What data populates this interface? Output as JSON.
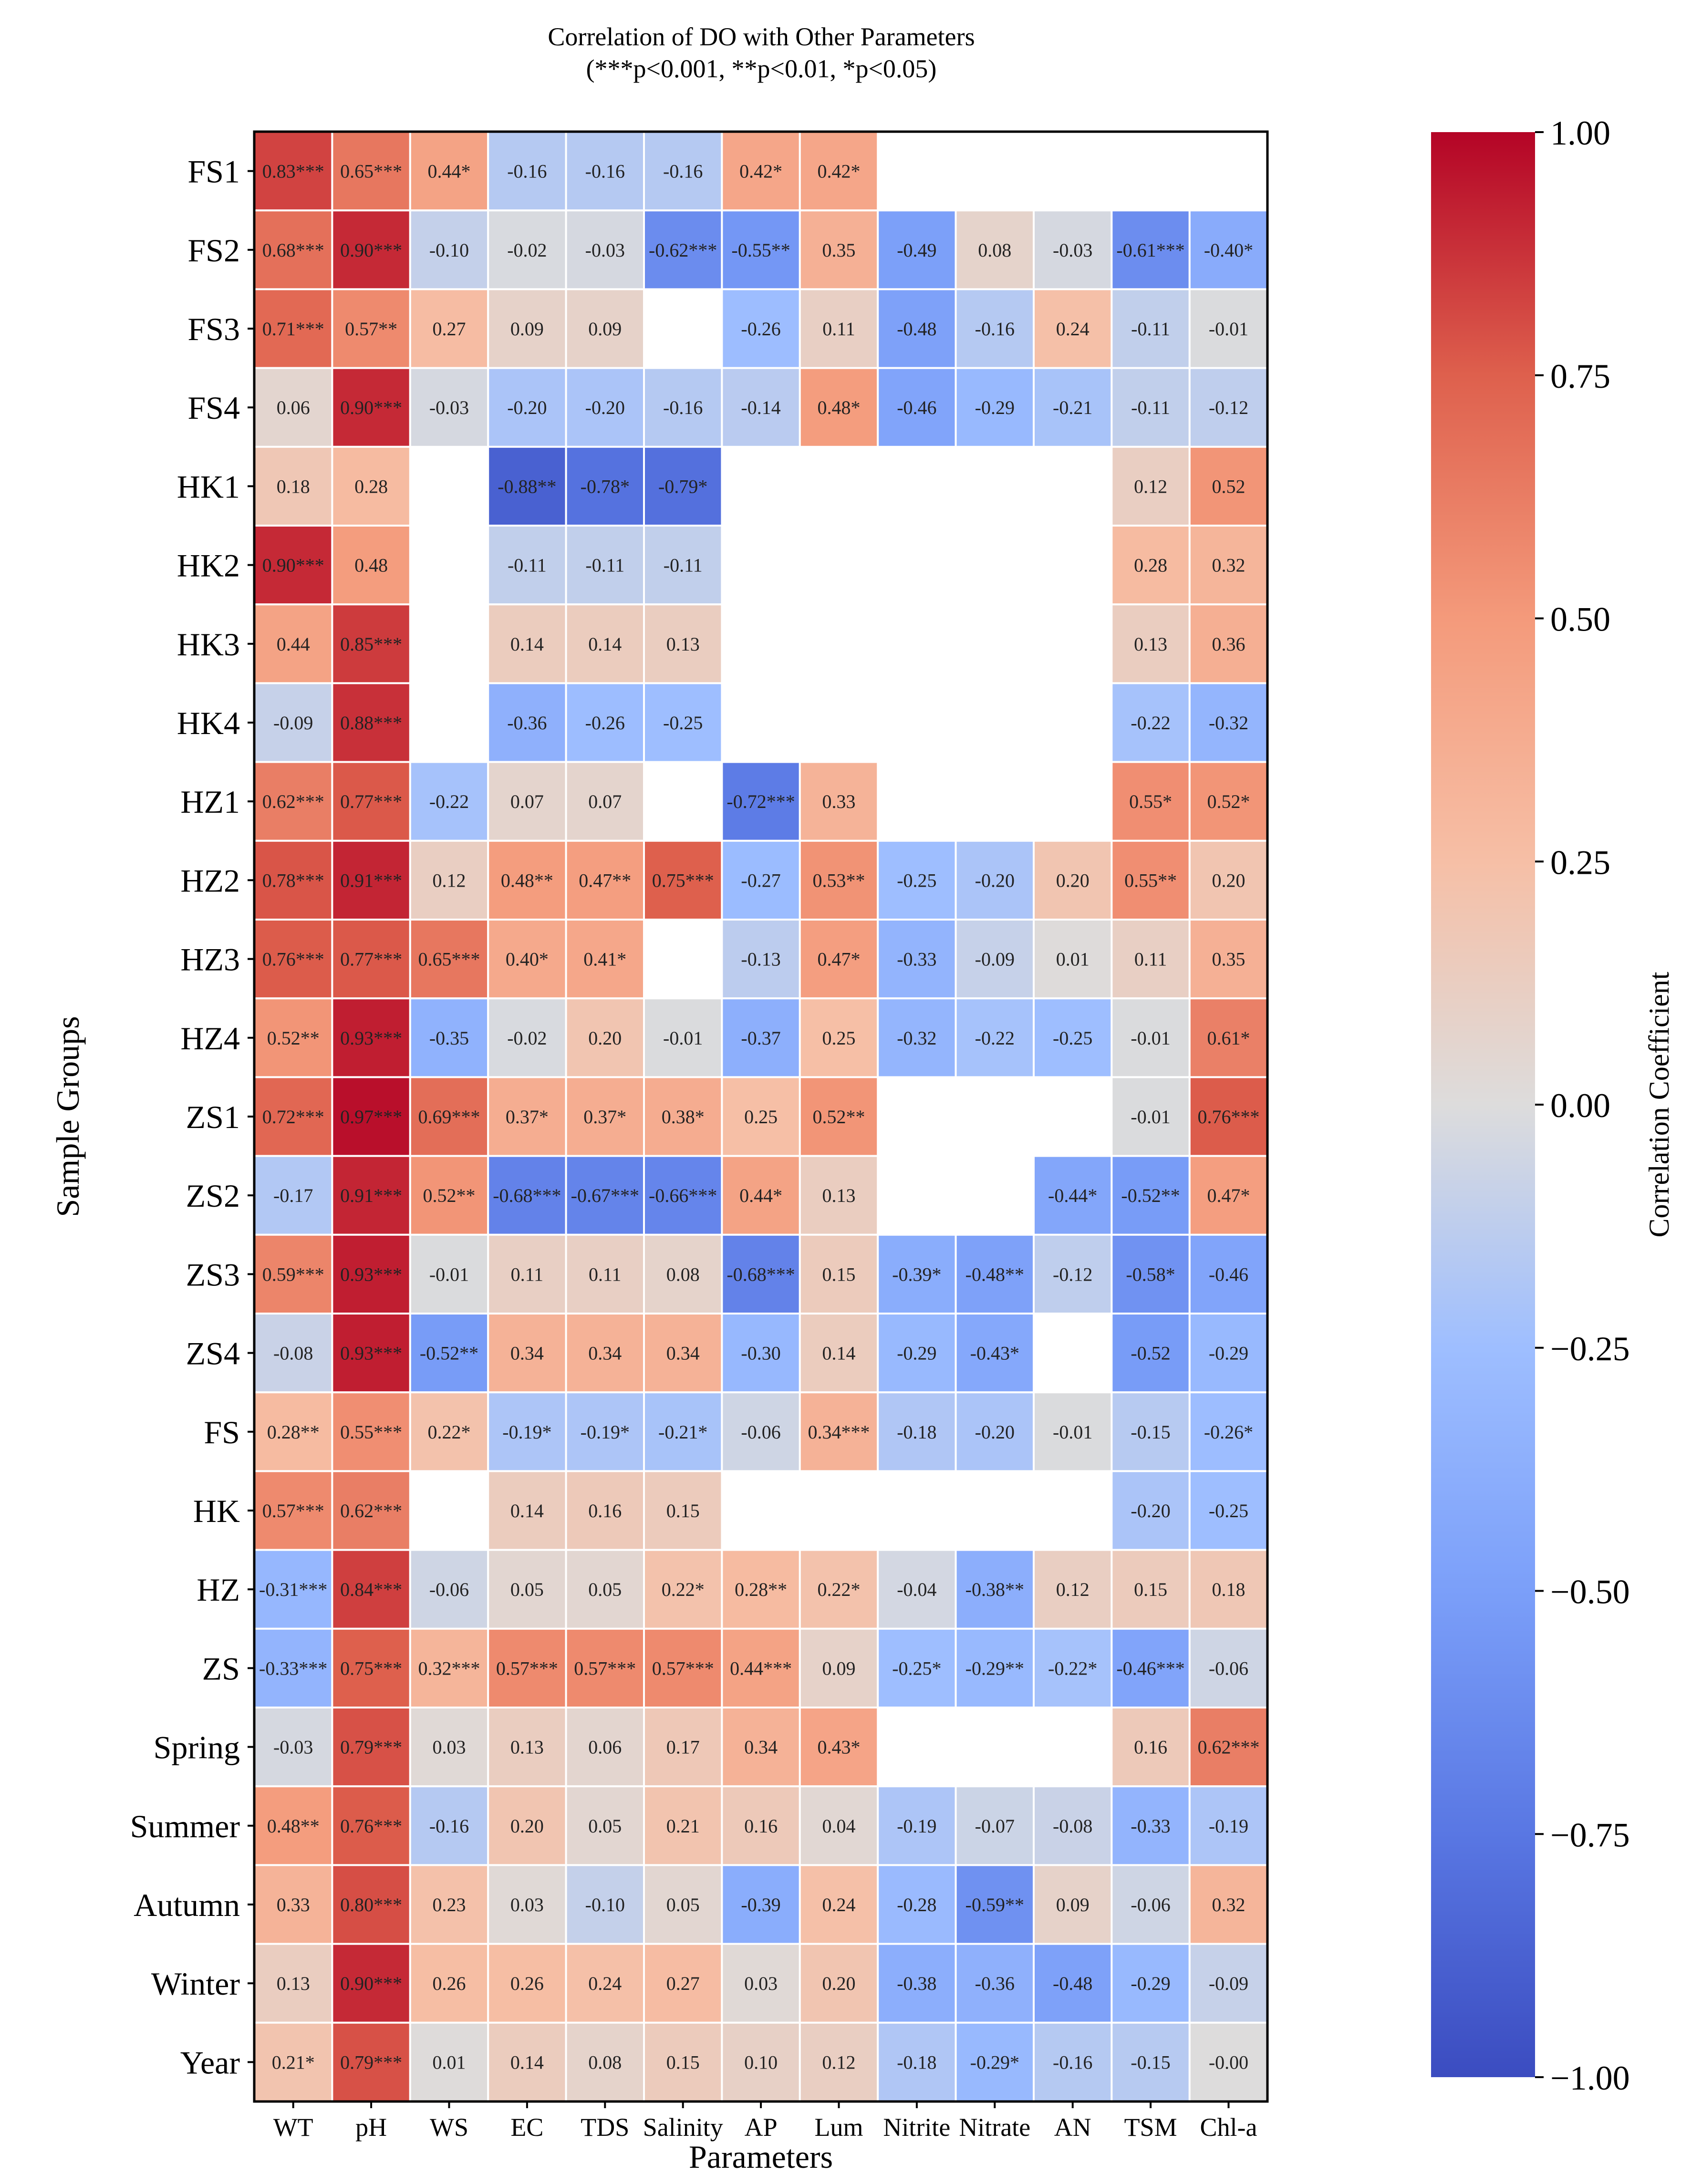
{
  "chart_data": {
    "type": "heatmap",
    "title": "Correlation of DO with Other Parameters",
    "subtitle": "(***p<0.001, **p<0.01, *p<0.05)",
    "xlabel": "Parameters",
    "ylabel": "Sample Groups",
    "columns": [
      "WT",
      "pH",
      "WS",
      "EC",
      "TDS",
      "Salinity",
      "AP",
      "Lum",
      "Nitrite",
      "Nitrate",
      "AN",
      "TSM",
      "Chl-a"
    ],
    "rows": [
      "FS1",
      "FS2",
      "FS3",
      "FS4",
      "HK1",
      "HK2",
      "HK3",
      "HK4",
      "HZ1",
      "HZ2",
      "HZ3",
      "HZ4",
      "ZS1",
      "ZS2",
      "ZS3",
      "ZS4",
      "FS",
      "HK",
      "HZ",
      "ZS",
      "Spring",
      "Summer",
      "Autumn",
      "Winter",
      "Year"
    ],
    "values": [
      [
        0.83,
        0.65,
        0.44,
        -0.16,
        -0.16,
        -0.16,
        0.42,
        0.42,
        null,
        null,
        null,
        null,
        null
      ],
      [
        0.68,
        0.9,
        -0.1,
        -0.02,
        -0.03,
        -0.62,
        -0.55,
        0.35,
        -0.49,
        0.08,
        -0.03,
        -0.61,
        -0.4
      ],
      [
        0.71,
        0.57,
        0.27,
        0.09,
        0.09,
        null,
        -0.26,
        0.11,
        -0.48,
        -0.16,
        0.24,
        -0.11,
        -0.01
      ],
      [
        0.06,
        0.9,
        -0.03,
        -0.2,
        -0.2,
        -0.16,
        -0.14,
        0.48,
        -0.46,
        -0.29,
        -0.21,
        -0.11,
        -0.12
      ],
      [
        0.18,
        0.28,
        null,
        -0.88,
        -0.78,
        -0.79,
        null,
        null,
        null,
        null,
        null,
        0.12,
        0.52
      ],
      [
        0.9,
        0.48,
        null,
        -0.11,
        -0.11,
        -0.11,
        null,
        null,
        null,
        null,
        null,
        0.28,
        0.32
      ],
      [
        0.44,
        0.85,
        null,
        0.14,
        0.14,
        0.13,
        null,
        null,
        null,
        null,
        null,
        0.13,
        0.36
      ],
      [
        -0.09,
        0.88,
        null,
        -0.36,
        -0.26,
        -0.25,
        null,
        null,
        null,
        null,
        null,
        -0.22,
        -0.32
      ],
      [
        0.62,
        0.77,
        -0.22,
        0.07,
        0.07,
        null,
        -0.72,
        0.33,
        null,
        null,
        null,
        0.55,
        0.52
      ],
      [
        0.78,
        0.91,
        0.12,
        0.48,
        0.47,
        0.75,
        -0.27,
        0.53,
        -0.25,
        -0.2,
        0.2,
        0.55,
        0.2
      ],
      [
        0.76,
        0.77,
        0.65,
        0.4,
        0.41,
        null,
        -0.13,
        0.47,
        -0.33,
        -0.09,
        0.01,
        0.11,
        0.35
      ],
      [
        0.52,
        0.93,
        -0.35,
        -0.02,
        0.2,
        -0.01,
        -0.37,
        0.25,
        -0.32,
        -0.22,
        -0.25,
        -0.01,
        0.61
      ],
      [
        0.72,
        0.97,
        0.69,
        0.37,
        0.37,
        0.38,
        0.25,
        0.52,
        null,
        null,
        null,
        -0.01,
        0.76
      ],
      [
        -0.17,
        0.91,
        0.52,
        -0.68,
        -0.67,
        -0.66,
        0.44,
        0.13,
        null,
        null,
        -0.44,
        -0.52,
        0.47
      ],
      [
        0.59,
        0.93,
        -0.01,
        0.11,
        0.11,
        0.08,
        -0.68,
        0.15,
        -0.39,
        -0.48,
        -0.12,
        -0.58,
        -0.46
      ],
      [
        -0.08,
        0.93,
        -0.52,
        0.34,
        0.34,
        0.34,
        -0.3,
        0.14,
        -0.29,
        -0.43,
        null,
        -0.52,
        -0.29
      ],
      [
        0.28,
        0.55,
        0.22,
        -0.19,
        -0.19,
        -0.21,
        -0.06,
        0.34,
        -0.18,
        -0.2,
        -0.01,
        -0.15,
        -0.26
      ],
      [
        0.57,
        0.62,
        null,
        0.14,
        0.16,
        0.15,
        null,
        null,
        null,
        null,
        null,
        -0.2,
        -0.25
      ],
      [
        -0.31,
        0.84,
        -0.06,
        0.05,
        0.05,
        0.22,
        0.28,
        0.22,
        -0.04,
        -0.38,
        0.12,
        0.15,
        0.18
      ],
      [
        -0.33,
        0.75,
        0.32,
        0.57,
        0.57,
        0.57,
        0.44,
        0.09,
        -0.25,
        -0.29,
        -0.22,
        -0.46,
        -0.06
      ],
      [
        -0.03,
        0.79,
        0.03,
        0.13,
        0.06,
        0.17,
        0.34,
        0.43,
        null,
        null,
        null,
        0.16,
        0.62
      ],
      [
        0.48,
        0.76,
        -0.16,
        0.2,
        0.05,
        0.21,
        0.16,
        0.04,
        -0.19,
        -0.07,
        -0.08,
        -0.33,
        -0.19
      ],
      [
        0.33,
        0.8,
        0.23,
        0.03,
        -0.1,
        0.05,
        -0.39,
        0.24,
        -0.28,
        -0.59,
        0.09,
        -0.06,
        0.32
      ],
      [
        0.13,
        0.9,
        0.26,
        0.26,
        0.24,
        0.27,
        0.03,
        0.2,
        -0.38,
        -0.36,
        -0.48,
        -0.29,
        -0.09
      ],
      [
        0.21,
        0.79,
        0.01,
        0.14,
        0.08,
        0.15,
        0.1,
        0.12,
        -0.18,
        -0.29,
        -0.16,
        -0.15,
        -0.0
      ]
    ],
    "annotations": [
      [
        "0.83***",
        "0.65***",
        "0.44*",
        "-0.16",
        "-0.16",
        "-0.16",
        "0.42*",
        "0.42*",
        "",
        "",
        "",
        "",
        ""
      ],
      [
        "0.68***",
        "0.90***",
        "-0.10",
        "-0.02",
        "-0.03",
        "-0.62***",
        "-0.55**",
        "0.35",
        "-0.49",
        "0.08",
        "-0.03",
        "-0.61***",
        "-0.40*"
      ],
      [
        "0.71***",
        "0.57**",
        "0.27",
        "0.09",
        "0.09",
        "",
        "-0.26",
        "0.11",
        "-0.48",
        "-0.16",
        "0.24",
        "-0.11",
        "-0.01"
      ],
      [
        "0.06",
        "0.90***",
        "-0.03",
        "-0.20",
        "-0.20",
        "-0.16",
        "-0.14",
        "0.48*",
        "-0.46",
        "-0.29",
        "-0.21",
        "-0.11",
        "-0.12"
      ],
      [
        "0.18",
        "0.28",
        "",
        "-0.88**",
        "-0.78*",
        "-0.79*",
        "",
        "",
        "",
        "",
        "",
        "0.12",
        "0.52"
      ],
      [
        "0.90***",
        "0.48",
        "",
        "-0.11",
        "-0.11",
        "-0.11",
        "",
        "",
        "",
        "",
        "",
        "0.28",
        "0.32"
      ],
      [
        "0.44",
        "0.85***",
        "",
        "0.14",
        "0.14",
        "0.13",
        "",
        "",
        "",
        "",
        "",
        "0.13",
        "0.36"
      ],
      [
        "-0.09",
        "0.88***",
        "",
        "-0.36",
        "-0.26",
        "-0.25",
        "",
        "",
        "",
        "",
        "",
        "-0.22",
        "-0.32"
      ],
      [
        "0.62***",
        "0.77***",
        "-0.22",
        "0.07",
        "0.07",
        "",
        "-0.72***",
        "0.33",
        "",
        "",
        "",
        "0.55*",
        "0.52*"
      ],
      [
        "0.78***",
        "0.91***",
        "0.12",
        "0.48**",
        "0.47**",
        "0.75***",
        "-0.27",
        "0.53**",
        "-0.25",
        "-0.20",
        "0.20",
        "0.55**",
        "0.20"
      ],
      [
        "0.76***",
        "0.77***",
        "0.65***",
        "0.40*",
        "0.41*",
        "",
        "-0.13",
        "0.47*",
        "-0.33",
        "-0.09",
        "0.01",
        "0.11",
        "0.35"
      ],
      [
        "0.52**",
        "0.93***",
        "-0.35",
        "-0.02",
        "0.20",
        "-0.01",
        "-0.37",
        "0.25",
        "-0.32",
        "-0.22",
        "-0.25",
        "-0.01",
        "0.61*"
      ],
      [
        "0.72***",
        "0.97***",
        "0.69***",
        "0.37*",
        "0.37*",
        "0.38*",
        "0.25",
        "0.52**",
        "",
        "",
        "",
        "-0.01",
        "0.76***"
      ],
      [
        "-0.17",
        "0.91***",
        "0.52**",
        "-0.68***",
        "-0.67***",
        "-0.66***",
        "0.44*",
        "0.13",
        "",
        "",
        "-0.44*",
        "-0.52**",
        "0.47*"
      ],
      [
        "0.59***",
        "0.93***",
        "-0.01",
        "0.11",
        "0.11",
        "0.08",
        "-0.68***",
        "0.15",
        "-0.39*",
        "-0.48**",
        "-0.12",
        "-0.58*",
        "-0.46"
      ],
      [
        "-0.08",
        "0.93***",
        "-0.52**",
        "0.34",
        "0.34",
        "0.34",
        "-0.30",
        "0.14",
        "-0.29",
        "-0.43*",
        "",
        "-0.52",
        "-0.29"
      ],
      [
        "0.28**",
        "0.55***",
        "0.22*",
        "-0.19*",
        "-0.19*",
        "-0.21*",
        "-0.06",
        "0.34***",
        "-0.18",
        "-0.20",
        "-0.01",
        "-0.15",
        "-0.26*"
      ],
      [
        "0.57***",
        "0.62***",
        "",
        "0.14",
        "0.16",
        "0.15",
        "",
        "",
        "",
        "",
        "",
        "-0.20",
        "-0.25"
      ],
      [
        "-0.31***",
        "0.84***",
        "-0.06",
        "0.05",
        "0.05",
        "0.22*",
        "0.28**",
        "0.22*",
        "-0.04",
        "-0.38**",
        "0.12",
        "0.15",
        "0.18"
      ],
      [
        "-0.33***",
        "0.75***",
        "0.32***",
        "0.57***",
        "0.57***",
        "0.57***",
        "0.44***",
        "0.09",
        "-0.25*",
        "-0.29**",
        "-0.22*",
        "-0.46***",
        "-0.06"
      ],
      [
        "-0.03",
        "0.79***",
        "0.03",
        "0.13",
        "0.06",
        "0.17",
        "0.34",
        "0.43*",
        "",
        "",
        "",
        "0.16",
        "0.62***"
      ],
      [
        "0.48**",
        "0.76***",
        "-0.16",
        "0.20",
        "0.05",
        "0.21",
        "0.16",
        "0.04",
        "-0.19",
        "-0.07",
        "-0.08",
        "-0.33",
        "-0.19"
      ],
      [
        "0.33",
        "0.80***",
        "0.23",
        "0.03",
        "-0.10",
        "0.05",
        "-0.39",
        "0.24",
        "-0.28",
        "-0.59**",
        "0.09",
        "-0.06",
        "0.32"
      ],
      [
        "0.13",
        "0.90***",
        "0.26",
        "0.26",
        "0.24",
        "0.27",
        "0.03",
        "0.20",
        "-0.38",
        "-0.36",
        "-0.48",
        "-0.29",
        "-0.09"
      ],
      [
        "0.21*",
        "0.79***",
        "0.01",
        "0.14",
        "0.08",
        "0.15",
        "0.10",
        "0.12",
        "-0.18",
        "-0.29*",
        "-0.16",
        "-0.15",
        "-0.00"
      ]
    ],
    "colorbar": {
      "label": "Correlation Coefficient",
      "range": [
        -1.0,
        1.0
      ],
      "ticks": [
        -1.0,
        -0.75,
        -0.5,
        -0.25,
        0.0,
        0.25,
        0.5,
        0.75,
        1.0
      ],
      "tick_labels": [
        "−1.00",
        "−0.75",
        "−0.50",
        "−0.25",
        "0.00",
        "0.25",
        "0.50",
        "0.75",
        "1.00"
      ],
      "colormap": "coolwarm"
    },
    "colors": {
      "low": "#3b4cc0",
      "mid": "#dddddd",
      "high": "#b40426"
    }
  }
}
